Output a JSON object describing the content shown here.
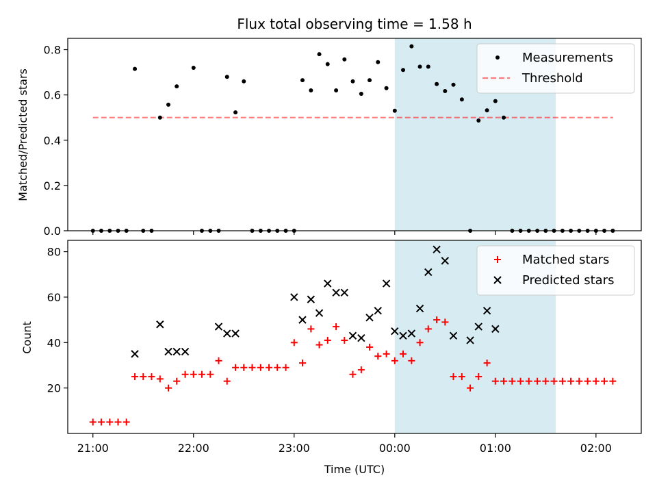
{
  "title": "Flux total observing time = 1.58 h",
  "chart_data": [
    {
      "type": "scatter",
      "ylabel": "Matched/Predicted stars",
      "ylim": [
        0,
        0.85
      ],
      "yticks": [
        "0.0",
        "0.2",
        "0.4",
        "0.6",
        "0.8"
      ],
      "xlim_hours": [
        20.75,
        26.45
      ],
      "highlight_span_hours": [
        24.0,
        25.6
      ],
      "highlight_color": "#add8e6",
      "legend_position": "upper right",
      "threshold": {
        "name": "Threshold",
        "value": 0.5,
        "x_start_hours": 21.0,
        "x_end_hours": 26.17,
        "color": "#ff0000",
        "style": "dashed"
      },
      "series": [
        {
          "name": "Measurements",
          "marker": "dot",
          "color": "#000000",
          "x_hours": [
            21.0,
            21.083,
            21.167,
            21.25,
            21.333,
            21.417,
            21.5,
            21.583,
            21.667,
            21.75,
            21.833,
            22.0,
            22.083,
            22.167,
            22.25,
            22.333,
            22.417,
            22.5,
            22.583,
            22.667,
            22.75,
            22.833,
            22.917,
            23.0,
            23.083,
            23.167,
            23.25,
            23.333,
            23.417,
            23.5,
            23.583,
            23.667,
            23.75,
            23.833,
            23.917,
            24.0,
            24.083,
            24.167,
            24.25,
            24.333,
            24.417,
            24.5,
            24.583,
            24.667,
            24.75,
            24.833,
            24.917,
            25.0,
            25.083,
            25.167,
            25.25,
            25.333,
            25.417,
            25.5,
            25.583,
            25.667,
            25.75,
            25.833,
            25.917,
            26.0,
            26.083,
            26.167
          ],
          "y": [
            0,
            0,
            0,
            0,
            0,
            0.715,
            0,
            0,
            0.5,
            0.557,
            0.638,
            0.72,
            0,
            0,
            0,
            0.68,
            0.523,
            0.66,
            0,
            0,
            0,
            0,
            0,
            0,
            0.665,
            0.62,
            0.78,
            0.736,
            0.62,
            0.757,
            0.66,
            0.605,
            0.665,
            0.745,
            0.63,
            0.53,
            0.71,
            0.815,
            0.725,
            0.725,
            0.648,
            0.617,
            0.645,
            0.58,
            0,
            0.487,
            0.532,
            0.573,
            0.5,
            0,
            0,
            0,
            0,
            0,
            0,
            0,
            0,
            0,
            0,
            0,
            0,
            0
          ]
        }
      ]
    },
    {
      "type": "scatter",
      "xlabel": "Time (UTC)",
      "ylabel": "Count",
      "ylim": [
        0,
        85
      ],
      "yticks": [
        "20",
        "40",
        "60",
        "80"
      ],
      "xticks": [
        "21:00",
        "22:00",
        "23:00",
        "00:00",
        "01:00",
        "02:00"
      ],
      "xlim_hours": [
        20.75,
        26.45
      ],
      "highlight_span_hours": [
        24.0,
        25.6
      ],
      "highlight_color": "#add8e6",
      "legend_position": "upper right",
      "series": [
        {
          "name": "Matched stars",
          "marker": "plus",
          "color": "#ff0000",
          "x_hours": [
            21.0,
            21.083,
            21.167,
            21.25,
            21.333,
            21.417,
            21.5,
            21.583,
            21.667,
            21.75,
            21.833,
            21.917,
            22.0,
            22.083,
            22.167,
            22.25,
            22.333,
            22.417,
            22.5,
            22.583,
            22.667,
            22.75,
            22.833,
            22.917,
            23.0,
            23.083,
            23.167,
            23.25,
            23.333,
            23.417,
            23.5,
            23.583,
            23.667,
            23.75,
            23.833,
            23.917,
            24.0,
            24.083,
            24.167,
            24.25,
            24.333,
            24.417,
            24.5,
            24.583,
            24.667,
            24.75,
            24.833,
            24.917,
            25.0,
            25.083,
            25.167,
            25.25,
            25.333,
            25.417,
            25.5,
            25.583,
            25.667,
            25.75,
            25.833,
            25.917,
            26.0,
            26.083,
            26.167
          ],
          "y": [
            5,
            5,
            5,
            5,
            5,
            25,
            25,
            25,
            24,
            20,
            23,
            26,
            26,
            26,
            26,
            32,
            23,
            29,
            29,
            29,
            29,
            29,
            29,
            29,
            40,
            31,
            46,
            39,
            41,
            47,
            41,
            26,
            28,
            38,
            34,
            35,
            32,
            35,
            32,
            40,
            46,
            50,
            49,
            25,
            25,
            20,
            25,
            31,
            23,
            23,
            23,
            23,
            23,
            23,
            23,
            23,
            23,
            23,
            23,
            23,
            23,
            23,
            23
          ]
        },
        {
          "name": "Predicted stars",
          "marker": "x",
          "color": "#000000",
          "x_hours": [
            21.417,
            21.667,
            21.75,
            21.833,
            21.917,
            22.25,
            22.333,
            22.417,
            23.0,
            23.083,
            23.167,
            23.25,
            23.333,
            23.417,
            23.5,
            23.583,
            23.667,
            23.75,
            23.833,
            23.917,
            24.0,
            24.083,
            24.167,
            24.25,
            24.333,
            24.417,
            24.5,
            24.583,
            24.75,
            24.833,
            24.917,
            25.0
          ],
          "y": [
            35,
            48,
            36,
            36,
            36,
            47,
            44,
            44,
            60,
            50,
            59,
            53,
            66,
            62,
            62,
            43,
            42,
            51,
            54,
            66,
            45,
            43,
            44,
            55,
            71,
            81,
            76,
            43,
            41,
            47,
            54,
            46
          ]
        }
      ]
    }
  ]
}
